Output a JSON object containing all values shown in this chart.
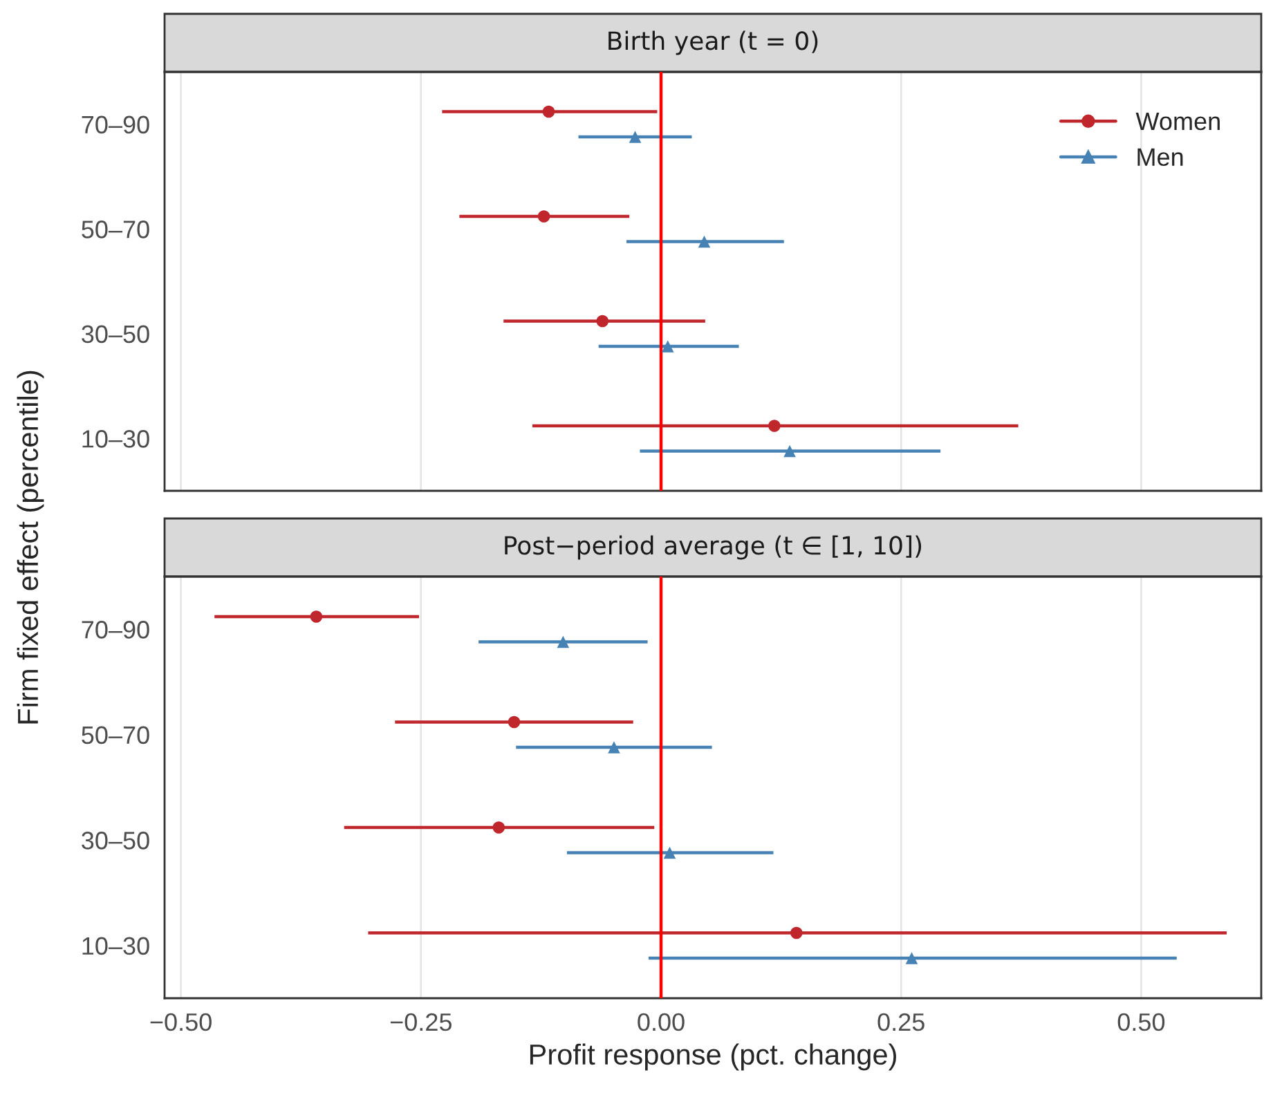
{
  "chart_data": [
    {
      "type": "scatter",
      "title": "Birth year (t = 0)",
      "ylabel": "Firm fixed effect (percentile)",
      "orientation": "horizontal",
      "categories": [
        "70–90",
        "50–70",
        "30–50",
        "10–30"
      ],
      "xlim": [
        -0.517,
        0.625
      ],
      "xticks": [
        -0.5,
        -0.25,
        0,
        0.25,
        0.5
      ],
      "tick_labels": "y",
      "grid": "x",
      "legend": "top right",
      "ref_lines": [
        {
          "axis": "x",
          "value": 0,
          "color": "#ff0000"
        }
      ],
      "series": [
        {
          "name": "Women",
          "color": "#c0272d",
          "marker": "circle",
          "values": [
            -0.117,
            -0.122,
            -0.061,
            0.118
          ],
          "errors": [
            [
              -0.228,
              -0.004
            ],
            [
              -0.21,
              -0.033
            ],
            [
              -0.164,
              0.046
            ],
            [
              -0.134,
              0.372
            ]
          ]
        },
        {
          "name": "Men",
          "color": "#4682b4",
          "marker": "triangle",
          "values": [
            -0.027,
            0.045,
            0.007,
            0.134
          ],
          "errors": [
            [
              -0.086,
              0.032
            ],
            [
              -0.036,
              0.128
            ],
            [
              -0.065,
              0.081
            ],
            [
              -0.022,
              0.291
            ]
          ]
        }
      ]
    },
    {
      "type": "scatter",
      "title": "Post−period average (t ∈ [1, 10])",
      "xlabel": "Profit response (pct. change)",
      "orientation": "horizontal",
      "categories": [
        "70–90",
        "50–70",
        "30–50",
        "10–30"
      ],
      "xlim": [
        -0.517,
        0.625
      ],
      "xticks": [
        {
          "value": -0.5,
          "label": "−0.50"
        },
        {
          "value": -0.25,
          "label": "−0.25"
        },
        {
          "value": 0,
          "label": "0.00"
        },
        {
          "value": 0.25,
          "label": "0.25"
        },
        {
          "value": 0.5,
          "label": "0.50"
        }
      ],
      "grid": "x",
      "ref_lines": [
        {
          "axis": "x",
          "value": 0,
          "color": "#ff0000"
        }
      ],
      "series": [
        {
          "color": "#c0272d",
          "marker": "circle",
          "values": [
            -0.359,
            -0.153,
            -0.169,
            0.141
          ],
          "errors": [
            [
              -0.465,
              -0.252
            ],
            [
              -0.277,
              -0.029
            ],
            [
              -0.33,
              -0.007
            ],
            [
              -0.305,
              0.589
            ]
          ]
        },
        {
          "color": "#4682b4",
          "marker": "triangle",
          "values": [
            -0.102,
            -0.049,
            0.009,
            0.261
          ],
          "errors": [
            [
              -0.19,
              -0.014
            ],
            [
              -0.151,
              0.053
            ],
            [
              -0.098,
              0.117
            ],
            [
              -0.013,
              0.537
            ]
          ]
        }
      ]
    }
  ]
}
